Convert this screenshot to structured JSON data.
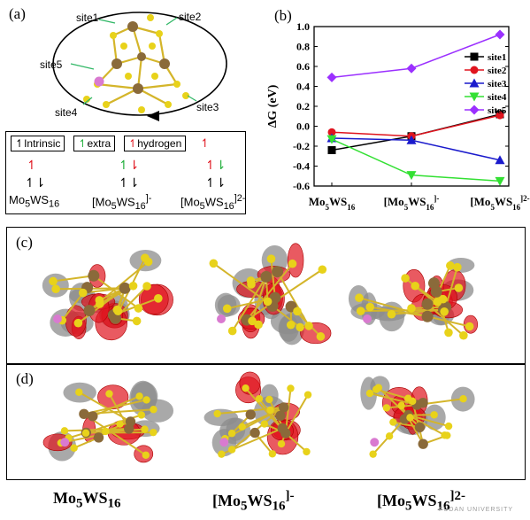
{
  "panel_a": {
    "label": "(a)",
    "sites": [
      "site1",
      "site2",
      "site5",
      "site4",
      "site3"
    ],
    "legend": {
      "intrinsic": "Intrinsic",
      "extra": "extra",
      "hydrogen": "hydrogen"
    },
    "formulas": [
      {
        "base": "Mo",
        "sub1": "5",
        "mid": "WS",
        "sub2": "16",
        "sup": ""
      },
      {
        "base": "[Mo",
        "sub1": "5",
        "mid": "WS",
        "sub2": "16",
        "sup": "]-"
      },
      {
        "base": "[Mo",
        "sub1": "5",
        "mid": "WS",
        "sub2": "16",
        "sup": "]2-"
      }
    ]
  },
  "panel_b": {
    "label": "(b)"
  },
  "panel_c": {
    "label": "(c)"
  },
  "panel_d": {
    "label": "(d)"
  },
  "bottom_labels": [
    {
      "base": "Mo",
      "sub1": "5",
      "mid": "WS",
      "sub2": "16",
      "sup": ""
    },
    {
      "base": "[Mo",
      "sub1": "5",
      "mid": "WS",
      "sub2": "16",
      "sup": "]-"
    },
    {
      "base": "[Mo",
      "sub1": "5",
      "mid": "WS",
      "sub2": "16",
      "sup": "]2-"
    }
  ],
  "watermark": "FUDAN UNIVERSITY",
  "colors": {
    "mo": "#8a6a3a",
    "s": "#e8d21a",
    "w": "#d97ad0",
    "red": "#e0141e",
    "grey": "#8c8c8c",
    "purple": "#9b30ff",
    "green": "#33e033",
    "blue": "#1a1acc"
  },
  "chart_data": {
    "type": "line",
    "categories": [
      "Mo5WS16",
      "[Mo5WS16]-",
      "[Mo5WS16]2-"
    ],
    "ylabel": "ΔG (eV)",
    "xlabel": "",
    "ylim": [
      -0.6,
      1.0
    ],
    "yticks": [
      -0.6,
      -0.4,
      -0.2,
      0.0,
      0.2,
      0.4,
      0.6,
      0.8,
      1.0
    ],
    "ytick_labels": [
      "-0.6",
      "-0.4",
      "-0.2",
      "0.0",
      "0.2",
      "0.4",
      "0.6",
      "0.8",
      "1.0"
    ],
    "legend_position": "right",
    "series": [
      {
        "name": "site1",
        "color": "#000000",
        "marker": "square",
        "values": [
          -0.24,
          -0.1,
          0.12
        ]
      },
      {
        "name": "site2",
        "color": "#e0141e",
        "marker": "circle",
        "values": [
          -0.06,
          -0.1,
          0.11
        ]
      },
      {
        "name": "site3",
        "color": "#1a1acc",
        "marker": "triangle-up",
        "values": [
          -0.12,
          -0.14,
          -0.34
        ]
      },
      {
        "name": "site4",
        "color": "#33e033",
        "marker": "triangle-down",
        "values": [
          -0.13,
          -0.49,
          -0.55
        ]
      },
      {
        "name": "site5",
        "color": "#9b30ff",
        "marker": "diamond",
        "values": [
          0.49,
          0.58,
          0.92
        ]
      }
    ]
  }
}
